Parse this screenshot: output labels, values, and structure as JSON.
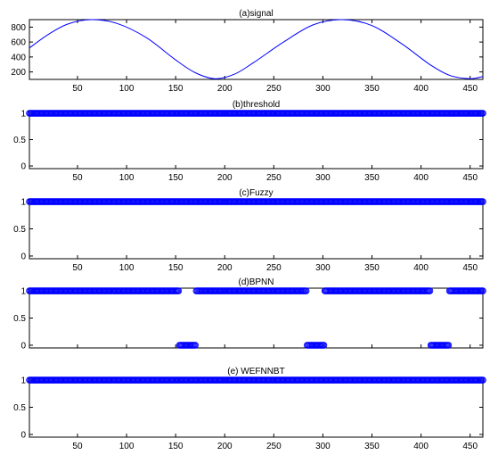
{
  "chart_data": [
    {
      "type": "line",
      "title": "(a)signal",
      "xlim": [
        1,
        463
      ],
      "ylim": [
        100,
        900
      ],
      "xticks": [
        50,
        100,
        150,
        200,
        250,
        300,
        350,
        400,
        450
      ],
      "yticks": [
        200,
        400,
        600,
        800
      ],
      "show_xtick_labels": true,
      "grid": false,
      "color": "#0000ff",
      "series": [
        {
          "x": [
            1,
            20,
            40,
            64,
            90,
            120,
            150,
            170,
            190,
            210,
            230,
            260,
            290,
            320,
            350,
            380,
            410,
            430,
            450,
            463
          ],
          "y": [
            520,
            700,
            840,
            900,
            850,
            660,
            360,
            190,
            110,
            170,
            330,
            600,
            830,
            900,
            820,
            580,
            290,
            150,
            110,
            140
          ]
        }
      ]
    },
    {
      "type": "scatter",
      "title": "(b)threshold",
      "xlim": [
        1,
        463
      ],
      "ylim": [
        -0.05,
        1.05
      ],
      "xticks": [
        50,
        100,
        150,
        200,
        250,
        300,
        350,
        400,
        450
      ],
      "yticks": [
        0,
        0.5,
        1
      ],
      "show_xtick_labels": true,
      "grid": false,
      "marker": "circle",
      "color": "#0000ff",
      "segments": [
        {
          "x_start": 1,
          "x_end": 463,
          "y": 1
        }
      ]
    },
    {
      "type": "scatter",
      "title": "(c)Fuzzy",
      "xlim": [
        1,
        463
      ],
      "ylim": [
        -0.05,
        1.05
      ],
      "xticks": [
        50,
        100,
        150,
        200,
        250,
        300,
        350,
        400,
        450
      ],
      "yticks": [
        0,
        0.5,
        1
      ],
      "show_xtick_labels": true,
      "grid": false,
      "marker": "circle",
      "color": "#0000ff",
      "segments": [
        {
          "x_start": 1,
          "x_end": 463,
          "y": 1
        }
      ]
    },
    {
      "type": "scatter",
      "title": "(d)BPNN",
      "xlim": [
        1,
        463
      ],
      "ylim": [
        -0.05,
        1.05
      ],
      "xticks": [
        50,
        100,
        150,
        200,
        250,
        300,
        350,
        400,
        450
      ],
      "yticks": [
        0,
        0.5,
        1
      ],
      "show_xtick_labels": false,
      "grid": false,
      "marker": "circle",
      "color": "#0000ff",
      "segments": [
        {
          "x_start": 1,
          "x_end": 153,
          "y": 1
        },
        {
          "x_start": 154,
          "x_end": 170,
          "y": 0
        },
        {
          "x_start": 171,
          "x_end": 283,
          "y": 1
        },
        {
          "x_start": 284,
          "x_end": 301,
          "y": 0
        },
        {
          "x_start": 302,
          "x_end": 409,
          "y": 1
        },
        {
          "x_start": 410,
          "x_end": 428,
          "y": 0
        },
        {
          "x_start": 429,
          "x_end": 463,
          "y": 1
        }
      ]
    },
    {
      "type": "scatter",
      "title": "(e) WEFNNBT",
      "xlim": [
        1,
        463
      ],
      "ylim": [
        -0.05,
        1.05
      ],
      "xticks": [
        50,
        100,
        150,
        200,
        250,
        300,
        350,
        400,
        450
      ],
      "yticks": [
        0,
        0.5,
        1
      ],
      "show_xtick_labels": true,
      "grid": false,
      "marker": "circle",
      "color": "#0000ff",
      "segments": [
        {
          "x_start": 1,
          "x_end": 463,
          "y": 1
        }
      ]
    }
  ]
}
